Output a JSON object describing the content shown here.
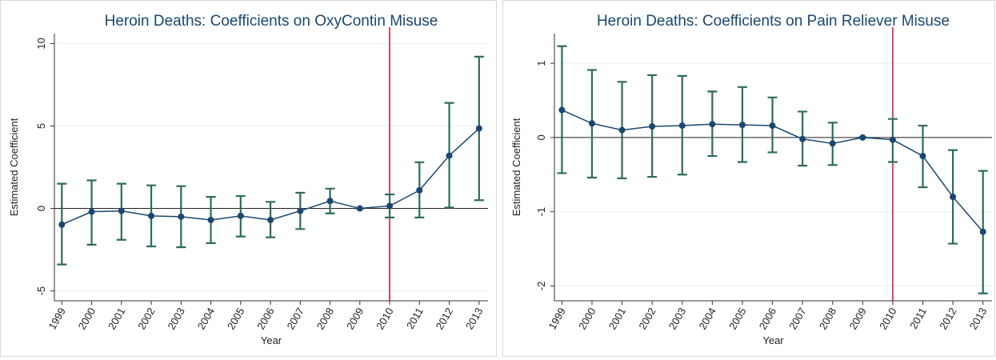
{
  "chart_data": [
    {
      "type": "line",
      "title": "Heroin Deaths: Coefficients on OxyContin Misuse",
      "x_label": "Year",
      "y_label": "Estimated Coefficient",
      "x": [
        1999,
        2000,
        2001,
        2002,
        2003,
        2004,
        2005,
        2006,
        2007,
        2008,
        2009,
        2010,
        2011,
        2012,
        2013
      ],
      "xlim": [
        1998.75,
        2013.3
      ],
      "xticks": [
        1999,
        2000,
        2001,
        2002,
        2003,
        2004,
        2005,
        2006,
        2007,
        2008,
        2009,
        2010,
        2011,
        2012,
        2013
      ],
      "ylim": [
        -5.6,
        10.6
      ],
      "yticks": [
        -5,
        0,
        5,
        10
      ],
      "grid": true,
      "hline": 0,
      "vline": 2010,
      "vline_color": "#c8102e",
      "series": [
        {
          "color": "#1a476f",
          "error_color": "#2e6b5e",
          "values": [
            -0.98,
            -0.2,
            -0.15,
            -0.45,
            -0.5,
            -0.7,
            -0.45,
            -0.7,
            -0.15,
            0.45,
            0,
            0.15,
            1.1,
            3.2,
            4.85
          ],
          "lower": [
            -3.4,
            -2.2,
            -1.9,
            -2.3,
            -2.35,
            -2.1,
            -1.7,
            -1.75,
            -1.25,
            -0.3,
            0,
            -0.55,
            -0.55,
            0.05,
            0.5
          ],
          "upper": [
            1.5,
            1.7,
            1.5,
            1.4,
            1.35,
            0.7,
            0.75,
            0.4,
            0.95,
            1.2,
            0,
            0.85,
            2.8,
            6.4,
            9.2
          ]
        }
      ]
    },
    {
      "type": "line",
      "title": "Heroin Deaths: Coefficients on Pain Reliever Misuse",
      "x_label": "Year",
      "y_label": "Estimated Coefficient",
      "x": [
        1999,
        2000,
        2001,
        2002,
        2003,
        2004,
        2005,
        2006,
        2007,
        2008,
        2009,
        2010,
        2011,
        2012,
        2013
      ],
      "xlim": [
        1998.75,
        2013.3
      ],
      "xticks": [
        1999,
        2000,
        2001,
        2002,
        2003,
        2004,
        2005,
        2006,
        2007,
        2008,
        2009,
        2010,
        2011,
        2012,
        2013
      ],
      "ylim": [
        -2.2,
        1.4
      ],
      "yticks": [
        -2,
        -1,
        0,
        1
      ],
      "grid": true,
      "hline": 0,
      "vline": 2010,
      "vline_color": "#c8102e",
      "series": [
        {
          "color": "#1a476f",
          "error_color": "#2e6b5e",
          "values": [
            0.37,
            0.19,
            0.1,
            0.15,
            0.16,
            0.18,
            0.17,
            0.16,
            -0.02,
            -0.08,
            0,
            -0.03,
            -0.25,
            -0.8,
            -1.27
          ],
          "lower": [
            -0.48,
            -0.54,
            -0.55,
            -0.53,
            -0.5,
            -0.25,
            -0.33,
            -0.2,
            -0.38,
            -0.37,
            0,
            -0.33,
            -0.67,
            -1.43,
            -2.1
          ],
          "upper": [
            1.23,
            0.91,
            0.75,
            0.84,
            0.83,
            0.62,
            0.68,
            0.54,
            0.35,
            0.2,
            0,
            0.25,
            0.16,
            -0.17,
            -0.45
          ]
        }
      ]
    }
  ]
}
